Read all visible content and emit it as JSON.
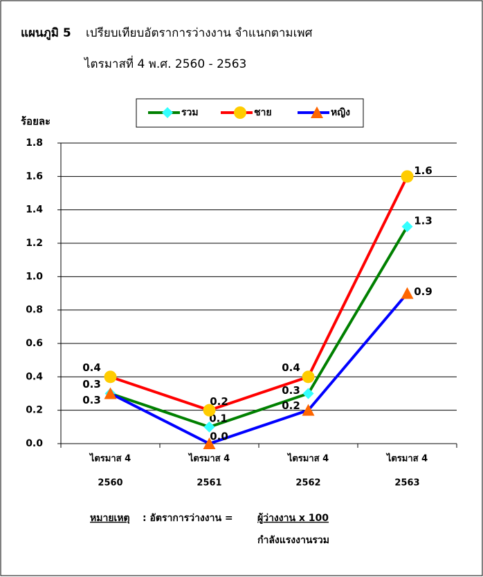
{
  "chart_data": {
    "type": "line",
    "figure_label": "แผนภูมิ 5",
    "title": "เปรียบเทียบอัตราการว่างงาน จำแนกตามเพศ",
    "subtitle": "ไตรมาสที่ 4 พ.ศ. 2560 - 2563",
    "y_label": "ร้อยละ",
    "categories": [
      [
        "ไตรมาส 4",
        "2560"
      ],
      [
        "ไตรมาส 4",
        "2561"
      ],
      [
        "ไตรมาส 4",
        "2562"
      ],
      [
        "ไตรมาส 4",
        "2563"
      ]
    ],
    "series": [
      {
        "name": "รวม",
        "color": "#008000",
        "marker": "diamond",
        "marker_color": "#33ffff",
        "values": [
          0.3,
          0.1,
          0.3,
          1.3
        ],
        "value_labels": [
          "0.3",
          "0.1",
          "0.3",
          "1.3"
        ]
      },
      {
        "name": "ชาย",
        "color": "#ff0000",
        "marker": "circle",
        "marker_color": "#ffcc00",
        "values": [
          0.4,
          0.2,
          0.4,
          1.6
        ],
        "value_labels": [
          "0.4",
          "0.2",
          "0.4",
          "1.6"
        ]
      },
      {
        "name": "หญิง",
        "color": "#0000ff",
        "marker": "triangle",
        "marker_color": "#ff6600",
        "values": [
          0.3,
          0.0,
          0.2,
          0.9
        ],
        "value_labels": [
          "0.3",
          "0.0",
          "0.2",
          "0.9"
        ]
      }
    ],
    "ylim": [
      0,
      1.8
    ],
    "yticks": [
      {
        "value": 0,
        "label": "0.0"
      },
      0.2,
      0.4,
      0.6,
      0.8,
      {
        "value": 1,
        "label": "1.0"
      },
      1.2,
      1.4,
      1.6,
      1.8
    ],
    "grid": true,
    "legend": "top",
    "note": {
      "label": "หมายเหตุ",
      "text": ": อัตราการว่างงาน =",
      "numerator": "ผู้ว่างงาน x 100",
      "denominator": "กำลังแรงงานรวม"
    }
  }
}
